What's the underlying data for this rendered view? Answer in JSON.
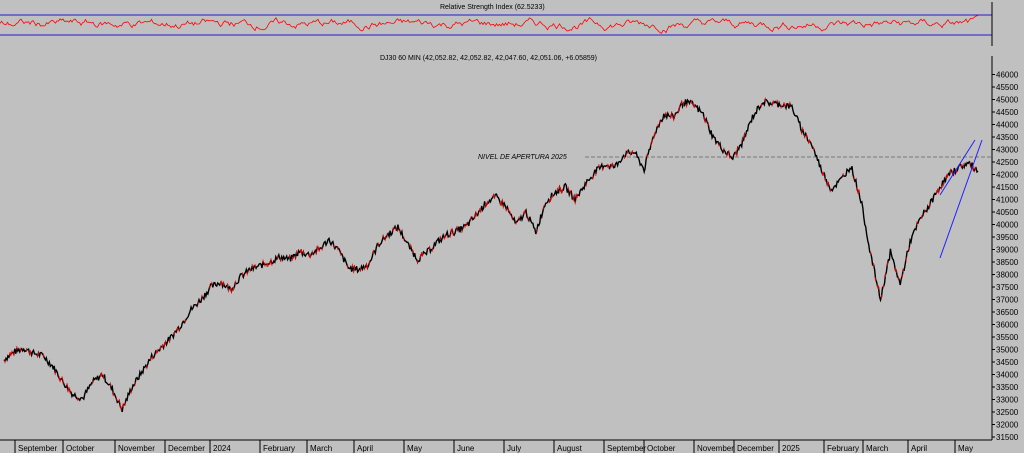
{
  "chart_data": [
    {
      "type": "line",
      "title": "Relative Strength Index (62.5233)",
      "panel": "indicator",
      "ylim": [
        0,
        100
      ],
      "reference_lines": [
        70,
        30
      ],
      "y_ticks": [
        50
      ],
      "series": [
        {
          "name": "RSI",
          "color": "#ff0000",
          "mean": 50,
          "amplitude": 22,
          "last_value": 62.5233
        }
      ]
    },
    {
      "type": "line",
      "title": "DJ30 60 MIN (42,052.82, 42,052.82, 42,047.60, 42,051.06, +6.05859)",
      "panel": "price",
      "ylim": [
        31500,
        46500
      ],
      "y_ticks": [
        31500,
        32000,
        32500,
        33000,
        33500,
        34000,
        34500,
        35000,
        35500,
        36000,
        36500,
        37000,
        37500,
        38000,
        38500,
        39000,
        39500,
        40000,
        40500,
        41000,
        41500,
        42000,
        42500,
        43000,
        43500,
        44000,
        44500,
        45000,
        45500,
        46000
      ],
      "x_labels": [
        "September",
        "October",
        "November",
        "December",
        "2024",
        "February",
        "March",
        "April",
        "May",
        "June",
        "July",
        "August",
        "September",
        "October",
        "November",
        "December",
        "2025",
        "February",
        "March",
        "April",
        "May"
      ],
      "annotations": [
        {
          "text": "NIVEL DE APERTURA 2025",
          "y": 42700,
          "style": "dashed-horizontal"
        }
      ],
      "series": [
        {
          "name": "DJ30 60 MIN",
          "color": "#000000",
          "x": [
            0,
            1,
            2,
            3,
            4,
            5,
            6,
            7,
            8,
            9,
            10,
            11,
            12,
            13,
            14,
            15,
            16,
            17,
            18,
            19,
            20,
            21,
            22,
            23,
            24,
            25,
            26,
            27,
            28,
            29,
            30,
            31,
            32,
            33,
            34,
            35,
            36,
            37,
            38,
            39,
            40,
            41,
            42,
            43,
            44,
            45,
            46,
            47,
            48,
            49,
            50,
            51,
            52,
            53,
            54,
            55,
            56,
            57,
            58,
            59,
            60,
            61,
            62,
            63,
            64,
            65,
            66,
            67,
            68,
            69,
            70,
            71,
            72,
            73,
            74,
            75,
            76,
            77,
            78,
            79,
            80,
            81,
            82,
            83,
            84,
            85,
            86,
            87,
            88,
            89,
            90,
            91,
            92,
            93,
            94,
            95,
            96,
            97,
            98,
            99
          ],
          "values": [
            34600,
            34900,
            35050,
            34850,
            34750,
            34300,
            33700,
            33200,
            33050,
            33700,
            34000,
            33400,
            32600,
            33500,
            34100,
            34700,
            35100,
            35500,
            36000,
            36600,
            37000,
            37500,
            37700,
            37400,
            37900,
            38200,
            38350,
            38500,
            38700,
            38600,
            38900,
            38800,
            39000,
            39400,
            38950,
            38250,
            38200,
            38400,
            39200,
            39600,
            39900,
            39200,
            38600,
            38900,
            39300,
            39600,
            39750,
            39950,
            40400,
            40900,
            41100,
            40700,
            40000,
            40500,
            39700,
            40900,
            41300,
            41500,
            41000,
            41600,
            42100,
            42400,
            42300,
            42800,
            42900,
            42200,
            43600,
            44400,
            44300,
            44900,
            44800,
            44400,
            43500,
            43000,
            42650,
            43300,
            44300,
            44900,
            44850,
            44800,
            44700,
            43800,
            43200,
            42200,
            41400,
            41800,
            42350,
            41000,
            38800,
            37000,
            38900,
            37600,
            39300,
            40200,
            40800,
            41500,
            42000,
            42300,
            42450,
            42100
          ]
        }
      ]
    }
  ]
}
